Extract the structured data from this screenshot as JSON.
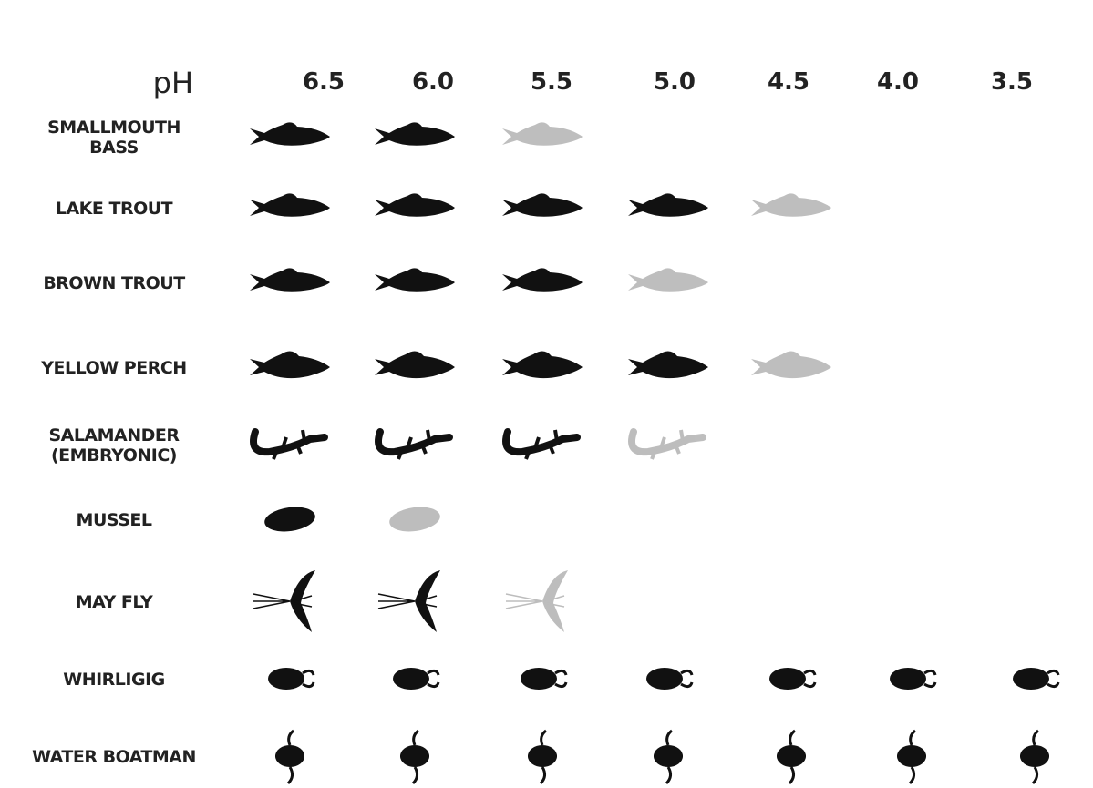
{
  "header": {
    "label": "pH",
    "columns": [
      "6.5",
      "6.0",
      "5.5",
      "5.0",
      "4.5",
      "4.0",
      "3.5"
    ]
  },
  "rows": [
    {
      "label": [
        "SMALLMOUTH",
        "BASS"
      ]
    },
    {
      "label": [
        "LAKE TROUT"
      ]
    },
    {
      "label": [
        "BROWN TROUT"
      ]
    },
    {
      "label": [
        "YELLOW PERCH"
      ]
    },
    {
      "label": [
        "SALAMANDER",
        "(EMBRYONIC)"
      ]
    },
    {
      "label": [
        "MUSSEL"
      ]
    },
    {
      "label": [
        "MAY FLY"
      ]
    },
    {
      "label": [
        "WHIRLIGIG"
      ]
    },
    {
      "label": [
        "WATER BOATMAN"
      ]
    }
  ]
}
